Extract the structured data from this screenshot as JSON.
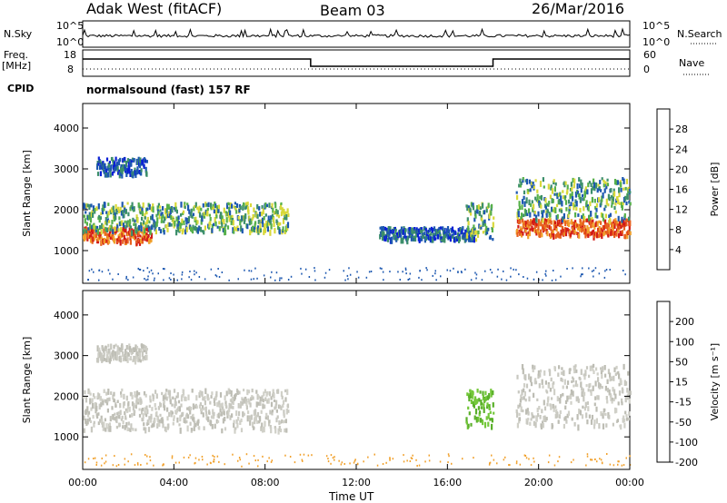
{
  "header": {
    "station": "Adak West (fitACF)",
    "beam": "Beam 03",
    "date": "26/Mar/2016"
  },
  "noise_panel": {
    "left_label": "N.Sky",
    "right_label": "N.Search",
    "left_ticks": [
      "10^5",
      "10^0"
    ],
    "right_ticks": [
      "10^5",
      "10^0"
    ]
  },
  "freq_panel": {
    "left_label_line1": "Freq.",
    "left_label_line2": "[MHz]",
    "right_label": "Nave",
    "left_ticks": [
      "18",
      "8"
    ],
    "right_ticks": [
      "60",
      "0"
    ]
  },
  "cpid_panel": {
    "label": "CPID",
    "text": "normalsound (fast) 157 RF"
  },
  "time_axis": {
    "label": "Time UT",
    "ticks": [
      "00:00",
      "04:00",
      "08:00",
      "12:00",
      "16:00",
      "20:00",
      "00:00"
    ]
  },
  "chart_data": [
    {
      "type": "heatmap",
      "name": "power",
      "ylabel": "Slant Range [km]",
      "yticks": [
        "1000",
        "2000",
        "3000",
        "4000"
      ],
      "ylim": [
        200,
        4600
      ],
      "xlim": [
        0,
        24
      ],
      "colorbar": {
        "label": "Power [dB]",
        "ticks": [
          "4",
          "8",
          "12",
          "16",
          "20",
          "24",
          "28"
        ],
        "colors": [
          "#0a1fd6",
          "#1d58b0",
          "#3d8f6b",
          "#56b04a",
          "#d8d83a",
          "#f1a02a",
          "#e8611e",
          "#d21a16"
        ]
      },
      "regions": [
        {
          "t_start": 0.0,
          "t_end": 3.0,
          "r_start": 1250,
          "r_end": 1600,
          "level": "high"
        },
        {
          "t_start": 0.0,
          "t_end": 9.0,
          "r_start": 1500,
          "r_end": 2200,
          "level": "medium"
        },
        {
          "t_start": 0.6,
          "t_end": 2.8,
          "r_start": 2900,
          "r_end": 3300,
          "level": "low"
        },
        {
          "t_start": 19.0,
          "t_end": 24.0,
          "r_start": 1400,
          "r_end": 1800,
          "level": "high"
        },
        {
          "t_start": 19.0,
          "t_end": 24.0,
          "r_start": 1800,
          "r_end": 2800,
          "level": "medium"
        },
        {
          "t_start": 13.0,
          "t_end": 17.2,
          "r_start": 1300,
          "r_end": 1600,
          "level": "low"
        },
        {
          "t_start": 16.8,
          "t_end": 18.0,
          "r_start": 1300,
          "r_end": 2200,
          "level": "medium"
        }
      ]
    },
    {
      "type": "heatmap",
      "name": "velocity",
      "ylabel": "Slant Range [km]",
      "yticks": [
        "1000",
        "2000",
        "3000",
        "4000"
      ],
      "ylim": [
        200,
        4600
      ],
      "xlim": [
        0,
        24
      ],
      "colorbar": {
        "label": "Velocity [m s⁻¹]",
        "ticks": [
          "200",
          "100",
          "50",
          "15",
          "-15",
          "-50",
          "-100",
          "-200"
        ],
        "colors": [
          "#0a1fd6",
          "#1d58b0",
          "#3d8f6b",
          "#74c83a",
          "#c8c8c0",
          "#f1a02a",
          "#e8611e",
          "#d21a16"
        ]
      },
      "regions": [
        {
          "t_start": 0.0,
          "t_end": 9.0,
          "r_start": 1200,
          "r_end": 2200,
          "level": "gray"
        },
        {
          "t_start": 0.6,
          "t_end": 2.8,
          "r_start": 2900,
          "r_end": 3300,
          "level": "gray"
        },
        {
          "t_start": 19.0,
          "t_end": 24.0,
          "r_start": 1300,
          "r_end": 2800,
          "level": "gray"
        },
        {
          "t_start": 16.8,
          "t_end": 18.0,
          "r_start": 1300,
          "r_end": 2200,
          "level": "green"
        }
      ]
    }
  ]
}
